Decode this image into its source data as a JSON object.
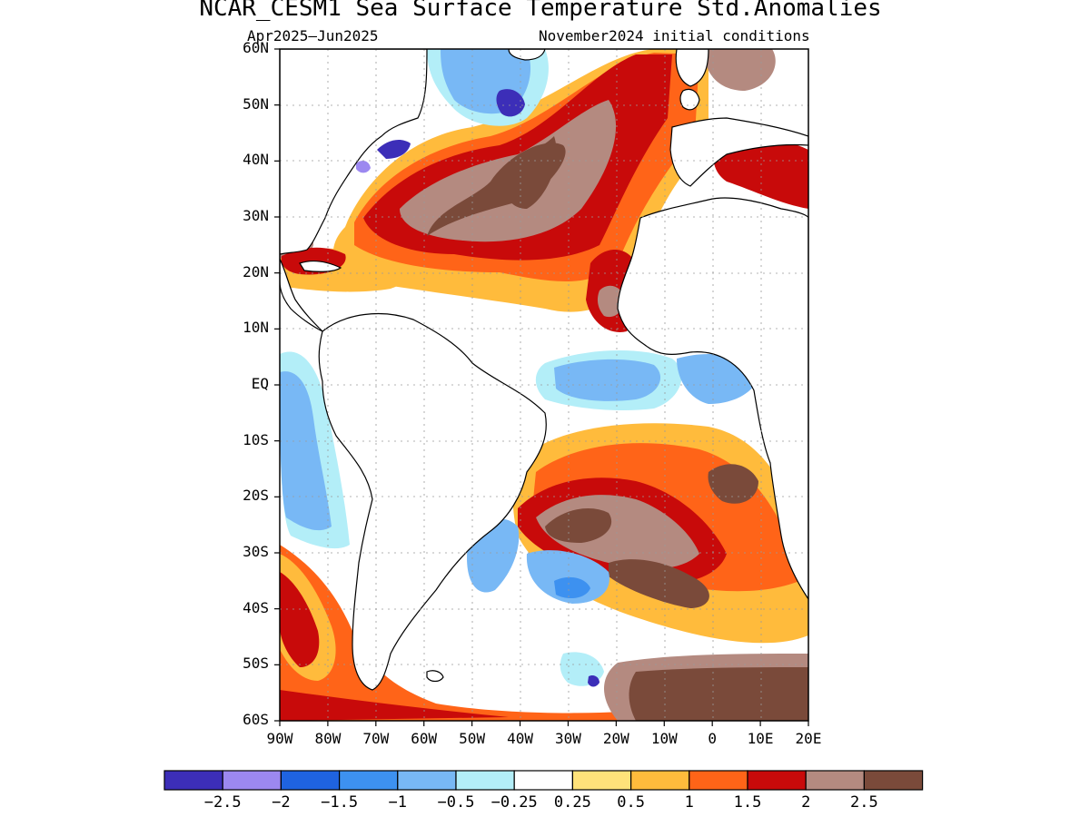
{
  "title": "NCAR_CESM1 Sea Surface Temperature Std.Anomalies",
  "subtitle_left": "Apr2025–Jun2025",
  "subtitle_right": "November2024 initial conditions",
  "lat_ticks": [
    "60N",
    "50N",
    "40N",
    "30N",
    "20N",
    "10N",
    "EQ",
    "10S",
    "20S",
    "30S",
    "40S",
    "50S",
    "60S"
  ],
  "lon_ticks": [
    "90W",
    "80W",
    "70W",
    "60W",
    "50W",
    "40W",
    "30W",
    "20W",
    "10W",
    "0",
    "10E",
    "20E"
  ],
  "colorbar": {
    "colors": [
      "#3c2eb8",
      "#9c88f0",
      "#1f63e0",
      "#3d91f0",
      "#78b8f5",
      "#b3eef8",
      "#ffffff",
      "#ffe27a",
      "#ffbb3c",
      "#ff6418",
      "#c80a0a",
      "#b48a80",
      "#7a4a3a"
    ],
    "labels": [
      "−2.5",
      "−2",
      "−1.5",
      "−1",
      "−0.5",
      "−0.25",
      "0.25",
      "0.5",
      "1",
      "1.5",
      "2",
      "2.5"
    ]
  },
  "map": {
    "lon_range": [
      -90,
      20
    ],
    "lat_range": [
      -60,
      60
    ],
    "grid": true
  }
}
